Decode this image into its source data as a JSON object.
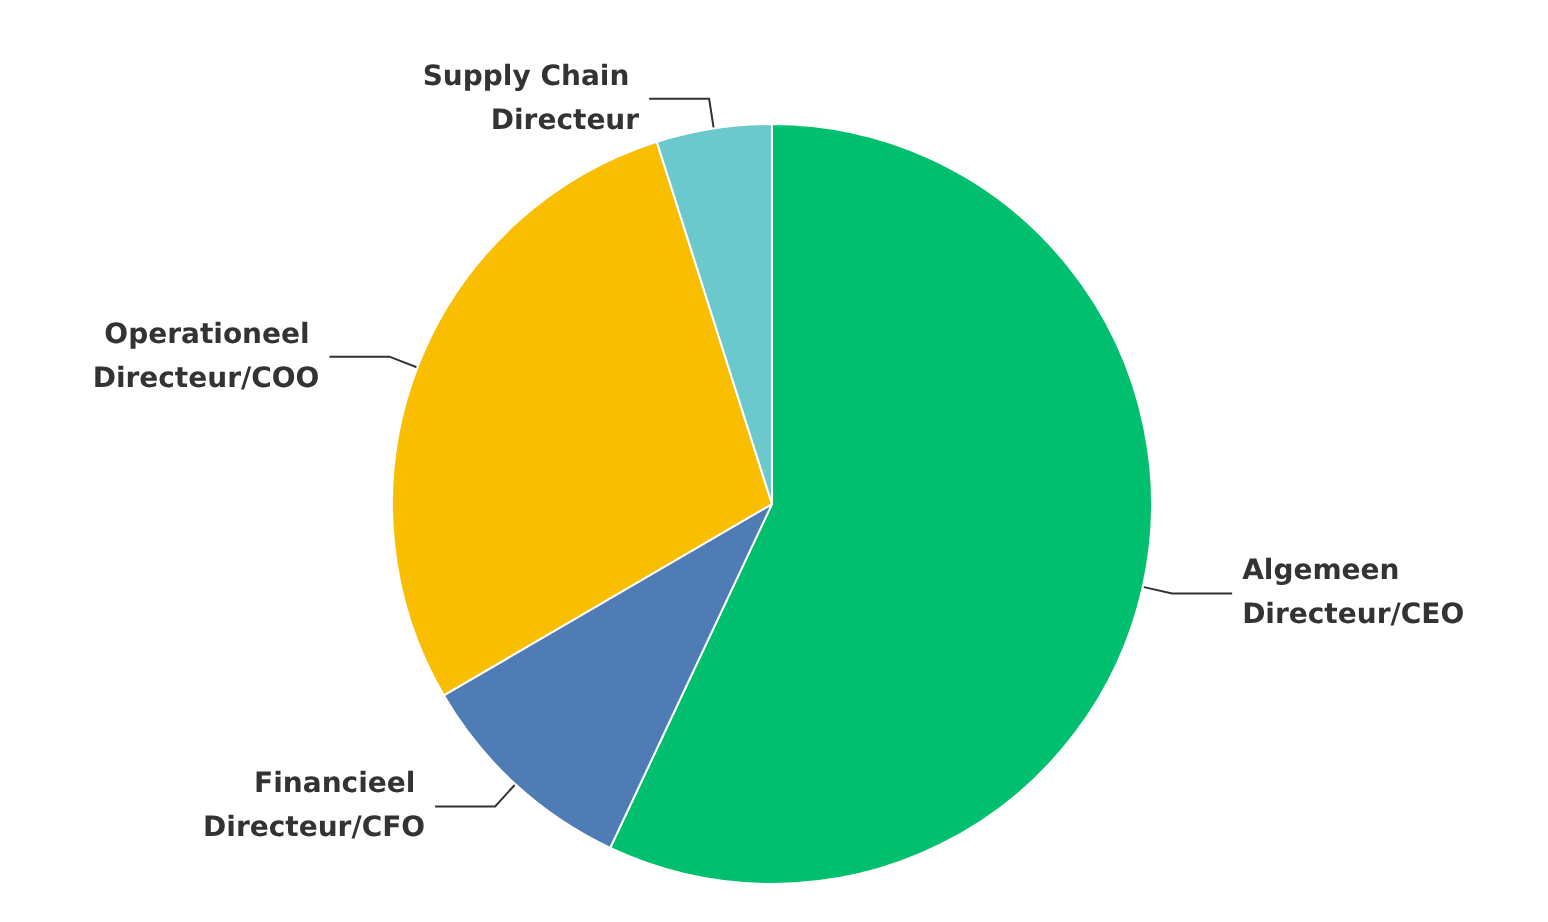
{
  "chart_data": {
    "type": "pie",
    "categories": [
      "Algemeen Directeur/CEO",
      "Financieel Directeur/CFO",
      "Operationeel Directeur/COO",
      "Supply Chain Directeur"
    ],
    "values": [
      57,
      9.6,
      28.5,
      4.9
    ],
    "colors": [
      "#00bf6f",
      "#507cb6",
      "#f9be00",
      "#6bc8cd"
    ]
  }
}
